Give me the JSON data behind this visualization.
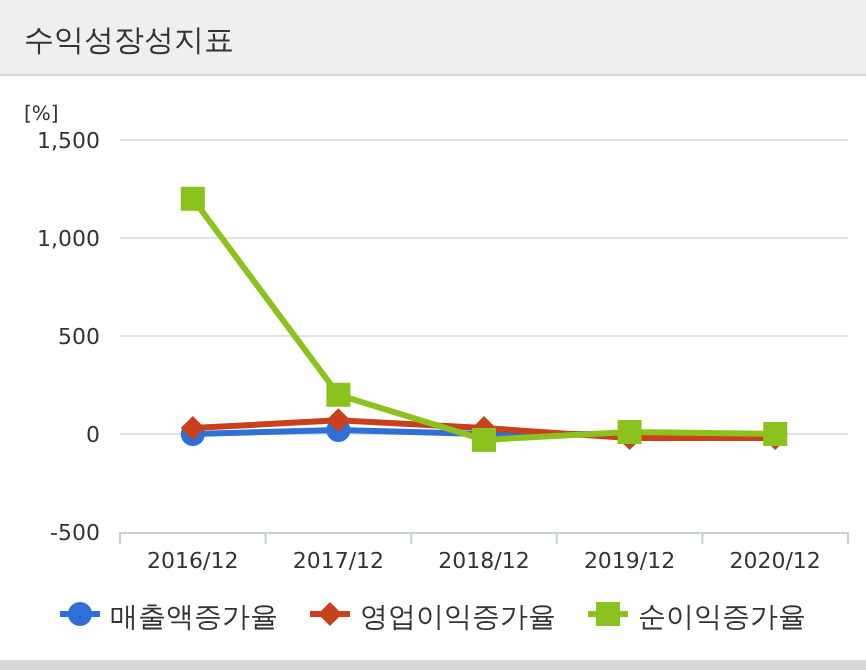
{
  "chart_data": {
    "type": "line",
    "title": "수익성장성지표",
    "ylabel": "[%]",
    "categories": [
      "2016/12",
      "2017/12",
      "2018/12",
      "2019/12",
      "2020/12"
    ],
    "series": [
      {
        "name": "매출액증가율",
        "color": "#2f6fd6",
        "marker": "circle",
        "values": [
          0,
          20,
          0,
          0,
          0
        ]
      },
      {
        "name": "영업이익증가율",
        "color": "#c8401c",
        "marker": "diamond",
        "values": [
          30,
          70,
          30,
          -20,
          -20
        ]
      },
      {
        "name": "순이익증가율",
        "color": "#8cc21e",
        "marker": "square",
        "values": [
          1200,
          200,
          -30,
          10,
          0
        ]
      }
    ],
    "ylim": [
      -500,
      1500
    ],
    "yticks": [
      {
        "value": -500,
        "label": "-500"
      },
      {
        "value": 0,
        "label": "0"
      },
      {
        "value": 500,
        "label": "500"
      },
      {
        "value": 1000,
        "label": "1,000"
      },
      {
        "value": 1500,
        "label": "1,500"
      }
    ],
    "grid": "y",
    "legend": "bottom"
  }
}
